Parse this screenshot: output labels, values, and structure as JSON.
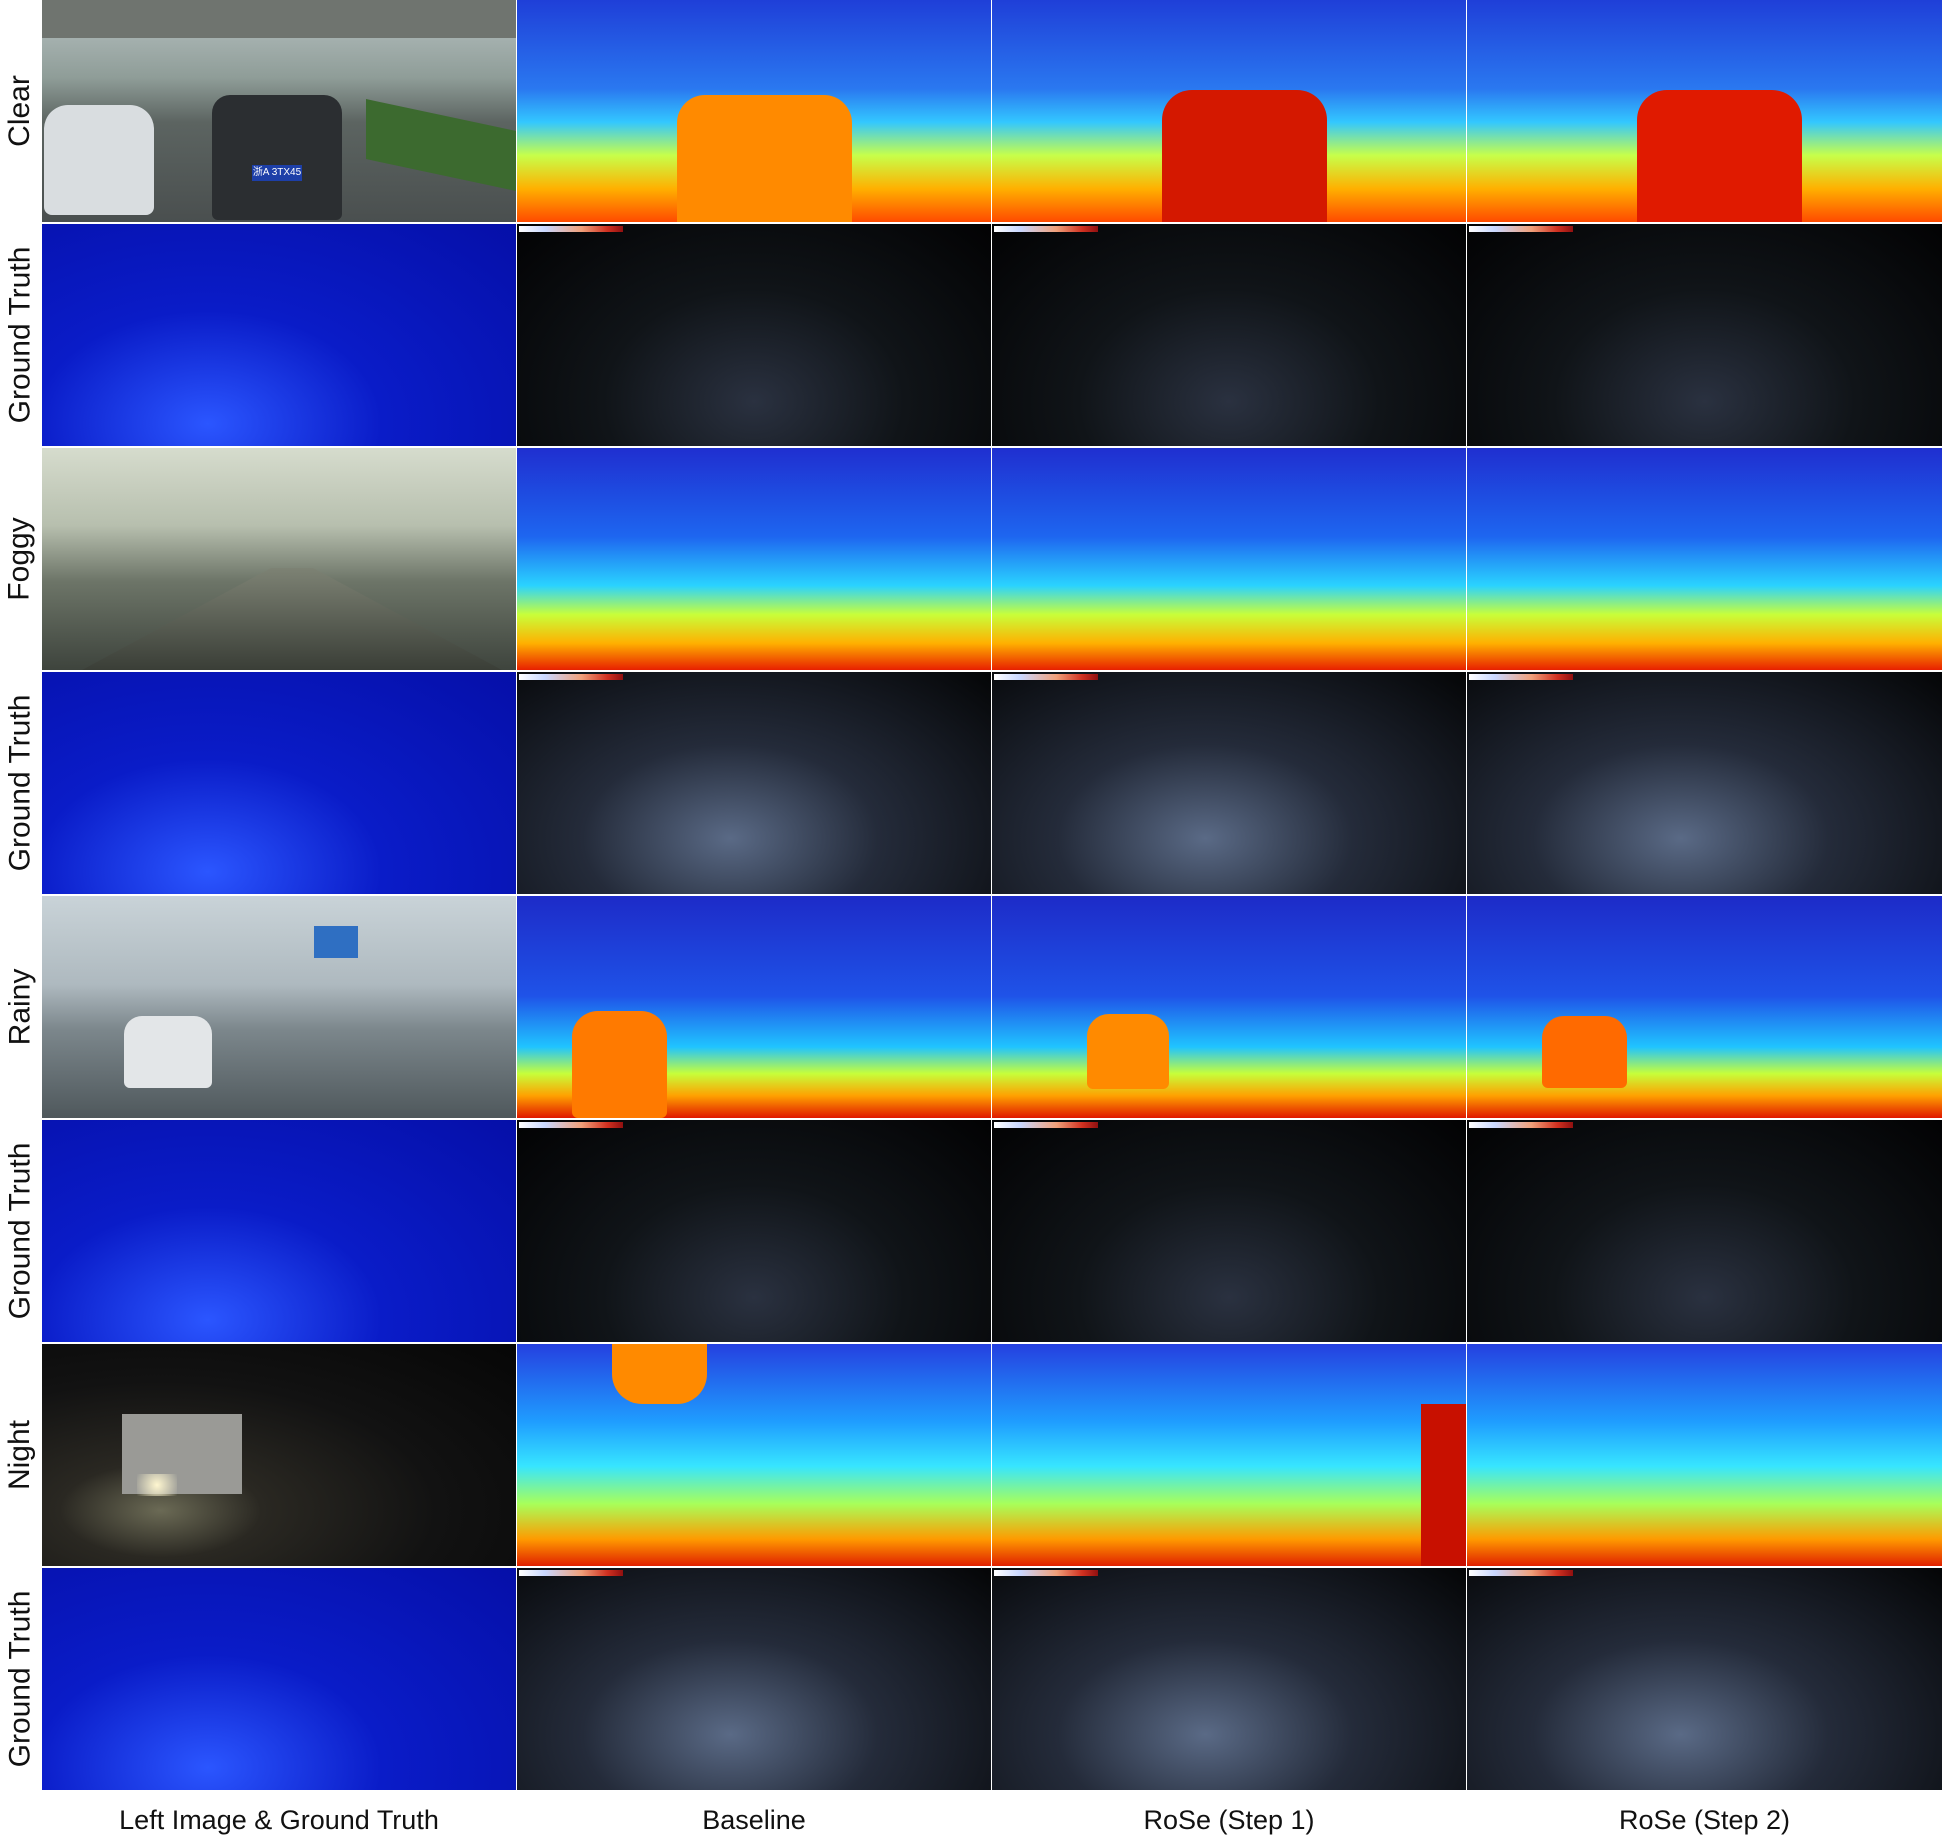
{
  "row_labels": {
    "clear": "Clear",
    "ground_truth_1": "Ground Truth",
    "foggy": "Foggy",
    "ground_truth_2": "Ground Truth",
    "rainy": "Rainy",
    "ground_truth_3": "Ground Truth",
    "night": "Night",
    "ground_truth_4": "Ground Truth"
  },
  "column_labels": {
    "left": "Left Image & Ground Truth",
    "baseline": "Baseline",
    "rose_step1": "RoSe (Step 1)",
    "rose_step2": "RoSe (Step 2)"
  },
  "visible_text": {
    "clear_plate": "浙A 3TX45"
  }
}
